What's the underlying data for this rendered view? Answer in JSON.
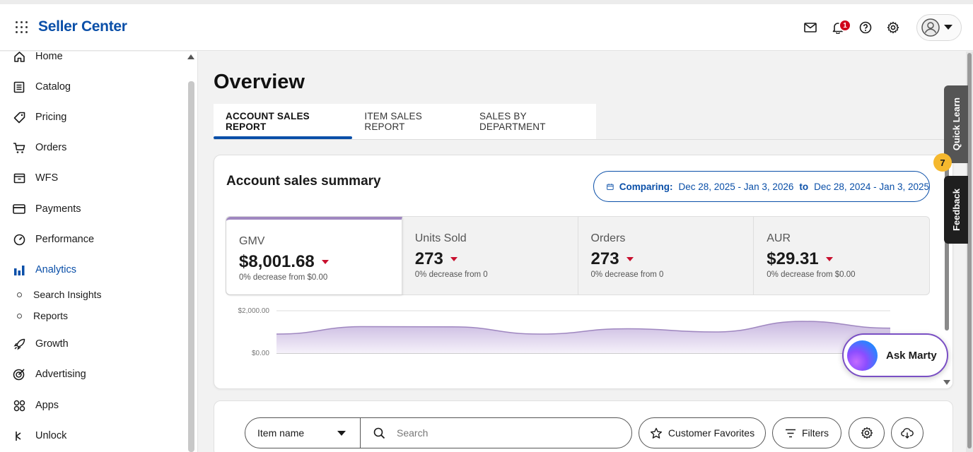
{
  "header": {
    "brand": "Seller Center",
    "notification_count": "1"
  },
  "sidebar": {
    "items": [
      {
        "label": "Home",
        "icon": "home-icon"
      },
      {
        "label": "Catalog",
        "icon": "catalog-icon"
      },
      {
        "label": "Pricing",
        "icon": "tag-icon"
      },
      {
        "label": "Orders",
        "icon": "cart-icon"
      },
      {
        "label": "WFS",
        "icon": "box-icon"
      },
      {
        "label": "Payments",
        "icon": "card-icon"
      },
      {
        "label": "Performance",
        "icon": "gauge-icon"
      },
      {
        "label": "Analytics",
        "icon": "bar-chart-icon",
        "active": true
      },
      {
        "label": "Growth",
        "icon": "rocket-icon"
      },
      {
        "label": "Advertising",
        "icon": "target-icon"
      },
      {
        "label": "Apps",
        "icon": "apps-icon"
      },
      {
        "label": "Unlock",
        "icon": "unlock-icon"
      }
    ],
    "sub_items": [
      "Search Insights",
      "Reports"
    ]
  },
  "page": {
    "title": "Overview",
    "tabs": [
      "ACCOUNT SALES REPORT",
      "ITEM SALES REPORT",
      "SALES BY DEPARTMENT"
    ],
    "active_tab": 0
  },
  "summary": {
    "title": "Account sales summary",
    "compare_label": "Comparing:",
    "compare_range_a": "Dec 28, 2025 - Jan 3, 2026",
    "compare_to": "to",
    "compare_range_b": "Dec 28, 2024 - Jan 3, 2025",
    "metrics": [
      {
        "label": "GMV",
        "value": "$8,001.68",
        "sub": "0% decrease from $0.00"
      },
      {
        "label": "Units Sold",
        "value": "273",
        "sub": "0% decrease from 0"
      },
      {
        "label": "Orders",
        "value": "273",
        "sub": "0% decrease from 0"
      },
      {
        "label": "AUR",
        "value": "$29.31",
        "sub": "0% decrease from $0.00"
      }
    ]
  },
  "chart_data": {
    "type": "area",
    "y_ticks": [
      "$2,000.00",
      "$0.00"
    ],
    "ylim": [
      0,
      2000
    ],
    "series": [
      {
        "values": [
          900,
          1250,
          1240,
          900,
          1150,
          1000,
          1500,
          1180
        ]
      }
    ]
  },
  "filters": {
    "select_value": "Item name",
    "search_placeholder": "Search",
    "favorites_label": "Customer Favorites",
    "filters_label": "Filters"
  },
  "floating": {
    "quick_learn": "Quick Learn",
    "quick_learn_count": "7",
    "feedback": "Feedback",
    "ask": "Ask Marty"
  },
  "colors": {
    "brand": "#0a4fa8",
    "alert": "#d0021b",
    "decrease": "#c8102e",
    "accent_purple": "#9f87c0"
  }
}
